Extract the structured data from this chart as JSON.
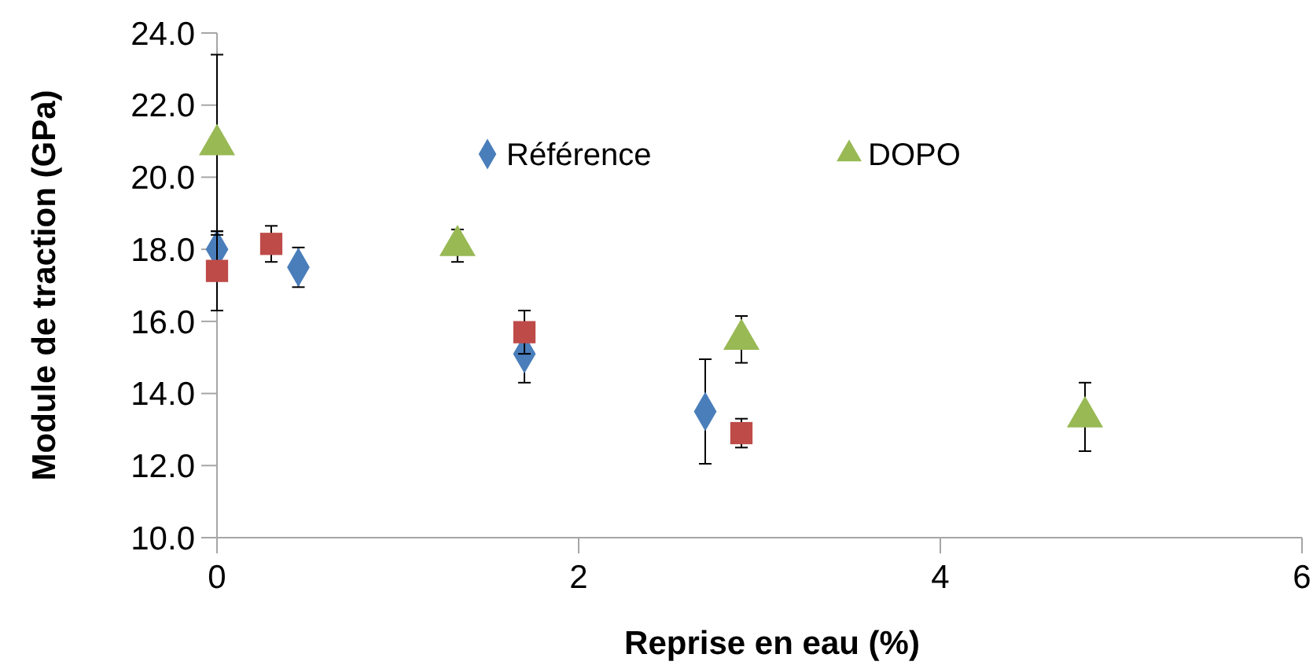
{
  "chart_data": {
    "type": "scatter",
    "xlabel": "Reprise en eau (%)",
    "ylabel": "Module de traction (GPa)",
    "xlim": [
      0,
      6
    ],
    "xticks": [
      0,
      2,
      4,
      6
    ],
    "ylim": [
      10,
      24
    ],
    "yticks": [
      {
        "value": 10,
        "label": "10.0"
      },
      {
        "value": 12,
        "label": "12.0"
      },
      {
        "value": 14,
        "label": "14.0"
      },
      {
        "value": 16,
        "label": "16.0"
      },
      {
        "value": 18,
        "label": "18.0"
      },
      {
        "value": 20,
        "label": "20.0"
      },
      {
        "value": 22,
        "label": "22.0"
      },
      {
        "value": 24,
        "label": "24.0"
      }
    ],
    "grid": false,
    "legend": "top",
    "series": [
      {
        "name": "Référence",
        "color": "#4a7ebb",
        "marker": "diamond",
        "x": [
          0,
          0.45,
          1.7,
          2.7
        ],
        "values": [
          18.0,
          17.5,
          15.1,
          13.5
        ],
        "errors": [
          0.5,
          0.55,
          0.8,
          1.45
        ]
      },
      {
        "color": "#be4b48",
        "marker": "square",
        "x": [
          0,
          0.3,
          1.7,
          2.9
        ],
        "values": [
          17.4,
          18.15,
          15.7,
          12.9
        ],
        "errors": [
          1.1,
          0.5,
          0.6,
          0.4
        ]
      },
      {
        "name": "DOPO",
        "color": "#98b954",
        "marker": "triangle",
        "x": [
          0,
          1.33,
          2.9,
          4.8
        ],
        "values": [
          20.9,
          18.1,
          15.5,
          13.35
        ],
        "errors": [
          2.5,
          0.45,
          0.65,
          0.95
        ]
      }
    ]
  }
}
